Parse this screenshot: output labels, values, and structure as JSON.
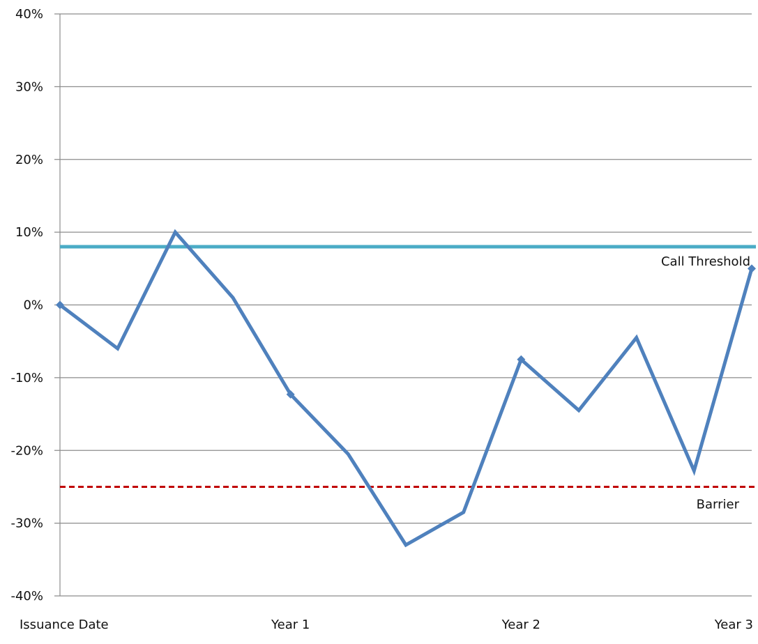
{
  "chart_data": {
    "type": "line",
    "title": "",
    "xlabel": "",
    "ylabel": "",
    "ylim": [
      -0.4,
      0.4
    ],
    "y_ticks": [
      0.4,
      0.3,
      0.2,
      0.1,
      0.0,
      -0.1,
      -0.2,
      -0.3,
      -0.4
    ],
    "y_tick_labels": [
      "40%",
      "30%",
      "20%",
      "10%",
      "0%",
      "-10%",
      "-20%",
      "-30%",
      "-40%"
    ],
    "x_tick_labels": [
      "Issuance Date",
      "Year 1",
      "Year 2",
      "Year 3"
    ],
    "x_tick_positions": [
      0,
      4,
      8,
      12
    ],
    "grid": "horizontal",
    "series": [
      {
        "color": "#4f81bd",
        "x": [
          0,
          1,
          2,
          3,
          4,
          5,
          6,
          7,
          8,
          9,
          10,
          11,
          12
        ],
        "values": [
          0.0,
          -0.06,
          0.1,
          0.01,
          -0.123,
          -0.205,
          -0.33,
          -0.285,
          -0.075,
          -0.145,
          -0.045,
          -0.228,
          0.05
        ],
        "markers_at": [
          0,
          4,
          8,
          12
        ]
      }
    ],
    "reference_lines": [
      {
        "label": "Call Threshold",
        "value": 0.08,
        "color": "#4bacc6",
        "style": "solid"
      },
      {
        "label": "Barrier",
        "value": -0.25,
        "color": "#c00000",
        "style": "dashed"
      }
    ]
  }
}
